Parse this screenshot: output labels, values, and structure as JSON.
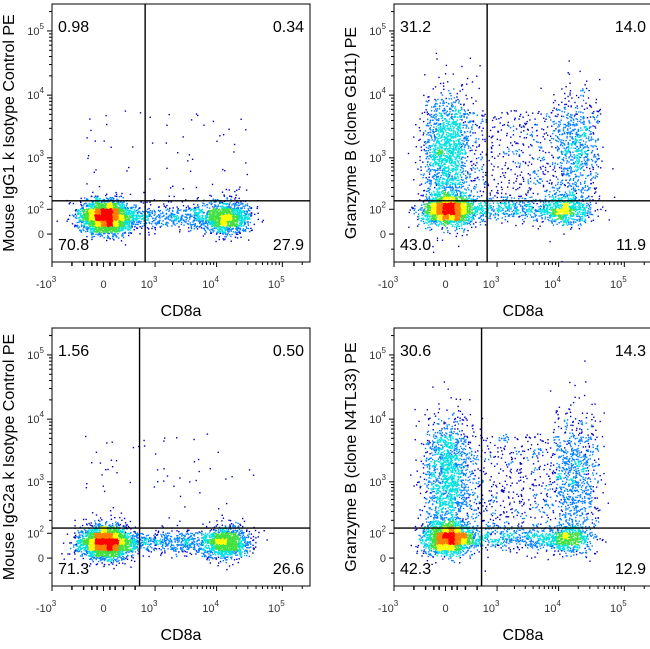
{
  "chart_data": [
    {
      "type": "scatter",
      "subtype": "flow-cytometry-density-dotplot",
      "xlabel": "CD8a",
      "ylabel": "Mouse IgG1 k Isotype Control PE",
      "x_scale": "biexponential",
      "y_scale": "biexponential",
      "x_ticks": [
        {
          "base": "-10",
          "exp": "3"
        },
        {
          "base": "0",
          "exp": ""
        },
        {
          "base": "10",
          "exp": "3"
        },
        {
          "base": "10",
          "exp": "4"
        },
        {
          "base": "10",
          "exp": "5"
        }
      ],
      "y_ticks": [
        {
          "base": "0",
          "exp": ""
        },
        {
          "base": "10",
          "exp": "2"
        },
        {
          "base": "10",
          "exp": "3"
        },
        {
          "base": "10",
          "exp": "4"
        },
        {
          "base": "10",
          "exp": "5"
        }
      ],
      "quadrant_gate": {
        "x": 650,
        "y": 160
      },
      "quadrants": {
        "upper_left": "0.98",
        "upper_right": "0.34",
        "lower_left": "70.8",
        "lower_right": "27.9"
      },
      "populations": [
        {
          "name": "CD8-negative",
          "x_center": 10,
          "y_center": 60,
          "percent": 70.8
        },
        {
          "name": "CD8-positive",
          "x_center": 14000,
          "y_center": 60,
          "percent": 27.9
        }
      ]
    },
    {
      "type": "scatter",
      "subtype": "flow-cytometry-density-dotplot",
      "xlabel": "CD8a",
      "ylabel": "Granzyme B (clone GB11) PE",
      "x_scale": "biexponential",
      "y_scale": "biexponential",
      "x_ticks": [
        {
          "base": "-10",
          "exp": "3"
        },
        {
          "base": "0",
          "exp": ""
        },
        {
          "base": "10",
          "exp": "3"
        },
        {
          "base": "10",
          "exp": "4"
        },
        {
          "base": "10",
          "exp": "5"
        }
      ],
      "y_ticks": [
        {
          "base": "0",
          "exp": ""
        },
        {
          "base": "10",
          "exp": "2"
        },
        {
          "base": "10",
          "exp": "3"
        },
        {
          "base": "10",
          "exp": "4"
        },
        {
          "base": "10",
          "exp": "5"
        }
      ],
      "quadrant_gate": {
        "x": 650,
        "y": 160
      },
      "quadrants": {
        "upper_left": "31.2",
        "upper_right": "14.0",
        "lower_left": "43.0",
        "lower_right": "11.9"
      },
      "populations": [
        {
          "name": "CD8-negative GzmB-negative",
          "x_center": 10,
          "y_center": 100,
          "percent": 43.0
        },
        {
          "name": "CD8-negative GzmB-positive",
          "x_center": 10,
          "y_center": 1300,
          "percent": 31.2
        },
        {
          "name": "CD8-positive GzmB-negative",
          "x_center": 14000,
          "y_center": 100,
          "percent": 11.9
        },
        {
          "name": "CD8-positive GzmB-positive",
          "x_center": 18000,
          "y_center": 1600,
          "percent": 14.0
        }
      ]
    },
    {
      "type": "scatter",
      "subtype": "flow-cytometry-density-dotplot",
      "xlabel": "CD8a",
      "ylabel": "Mouse IgG2a k Isotype Control PE",
      "x_scale": "biexponential",
      "y_scale": "biexponential",
      "x_ticks": [
        {
          "base": "-10",
          "exp": "3"
        },
        {
          "base": "0",
          "exp": ""
        },
        {
          "base": "10",
          "exp": "3"
        },
        {
          "base": "10",
          "exp": "4"
        },
        {
          "base": "10",
          "exp": "5"
        }
      ],
      "y_ticks": [
        {
          "base": "0",
          "exp": ""
        },
        {
          "base": "10",
          "exp": "2"
        },
        {
          "base": "10",
          "exp": "3"
        },
        {
          "base": "10",
          "exp": "4"
        },
        {
          "base": "10",
          "exp": "5"
        }
      ],
      "quadrant_gate": {
        "x": 500,
        "y": 135
      },
      "quadrants": {
        "upper_left": "1.56",
        "upper_right": "0.50",
        "lower_left": "71.3",
        "lower_right": "26.6"
      },
      "populations": [
        {
          "name": "CD8-negative",
          "x_center": 10,
          "y_center": 55,
          "percent": 71.3
        },
        {
          "name": "CD8-positive",
          "x_center": 14000,
          "y_center": 55,
          "percent": 26.6
        }
      ]
    },
    {
      "type": "scatter",
      "subtype": "flow-cytometry-density-dotplot",
      "xlabel": "CD8a",
      "ylabel": "Granzyme B (clone N4TL33) PE",
      "x_scale": "biexponential",
      "y_scale": "biexponential",
      "x_ticks": [
        {
          "base": "-10",
          "exp": "3"
        },
        {
          "base": "0",
          "exp": ""
        },
        {
          "base": "10",
          "exp": "3"
        },
        {
          "base": "10",
          "exp": "4"
        },
        {
          "base": "10",
          "exp": "5"
        }
      ],
      "y_ticks": [
        {
          "base": "0",
          "exp": ""
        },
        {
          "base": "10",
          "exp": "2"
        },
        {
          "base": "10",
          "exp": "3"
        },
        {
          "base": "10",
          "exp": "4"
        },
        {
          "base": "10",
          "exp": "5"
        }
      ],
      "quadrant_gate": {
        "x": 500,
        "y": 135
      },
      "quadrants": {
        "upper_left": "30.6",
        "upper_right": "14.3",
        "lower_left": "42.3",
        "lower_right": "12.9"
      },
      "populations": [
        {
          "name": "CD8-negative GzmB-negative",
          "x_center": 10,
          "y_center": 75,
          "percent": 42.3
        },
        {
          "name": "CD8-negative GzmB-positive",
          "x_center": 10,
          "y_center": 1300,
          "percent": 30.6
        },
        {
          "name": "CD8-positive GzmB-negative",
          "x_center": 14000,
          "y_center": 75,
          "percent": 12.9
        },
        {
          "name": "CD8-positive GzmB-positive",
          "x_center": 18000,
          "y_center": 1800,
          "percent": 14.3
        }
      ]
    }
  ],
  "colors": {
    "density_scale": [
      "#0000c8",
      "#0080ff",
      "#00e0e0",
      "#40e040",
      "#ffff00",
      "#ff8000",
      "#ff0000"
    ],
    "axis": "#000000",
    "gate": "#000000"
  }
}
